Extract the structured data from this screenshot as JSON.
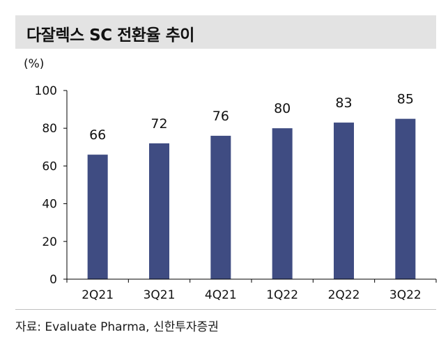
{
  "header": {
    "title": "다잘렉스 SC 전환율 추이"
  },
  "footer": {
    "source": "자료: Evaluate Pharma, 신한투자증권"
  },
  "colors": {
    "bar": "#3f4c82",
    "axis": "#000000",
    "title_bg": "#e3e3e3"
  },
  "chart_data": {
    "type": "bar",
    "title": "다잘렉스 SC 전환율 추이",
    "unit_label": "(%)",
    "categories": [
      "2Q21",
      "3Q21",
      "4Q21",
      "1Q22",
      "2Q22",
      "3Q22"
    ],
    "values": [
      66,
      72,
      76,
      80,
      83,
      85
    ],
    "data_labels": [
      "66",
      "72",
      "76",
      "80",
      "83",
      "85"
    ],
    "yticks": [
      0,
      20,
      40,
      60,
      80,
      100
    ],
    "ylim": [
      0,
      100
    ],
    "xlabel": "",
    "ylabel": "(%)",
    "grid": false
  }
}
